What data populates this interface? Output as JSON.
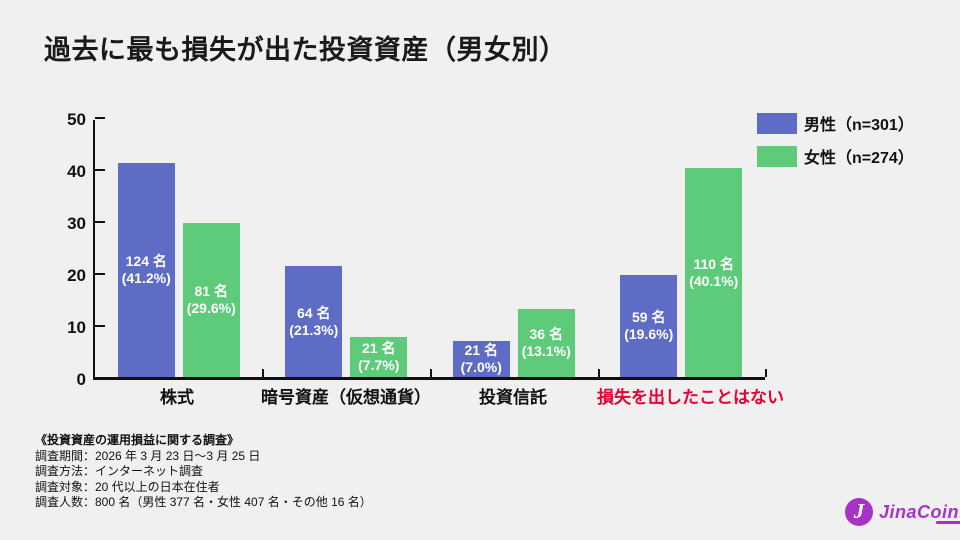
{
  "title": "過去に最も損失が出た投資資産（男女別）",
  "colors": {
    "male": "#5e6cc6",
    "female": "#5ecb7b",
    "highlight": "#e60033",
    "axis": "#111111",
    "background": "#f0f0f1",
    "bar_label_text": "#ffffff",
    "logo": "#a832c8"
  },
  "legend": {
    "items": [
      {
        "label": "男性（n=301）",
        "series": "male"
      },
      {
        "label": "女性（n=274）",
        "series": "female"
      }
    ]
  },
  "chart_data": {
    "type": "bar",
    "title": "過去に最も損失が出た投資資産（男女別）",
    "xlabel": "",
    "ylabel": "",
    "ylim": [
      0,
      50
    ],
    "yticks": [
      0,
      10,
      20,
      30,
      40,
      50
    ],
    "grid": false,
    "legend_position": "top-right",
    "categories": [
      "株式",
      "暗号資産（仮想通貨）",
      "投資信託",
      "損失を出したことはない"
    ],
    "category_highlight": [
      false,
      false,
      false,
      true
    ],
    "series": [
      {
        "name": "男性（n=301）",
        "color_key": "male",
        "n": 301,
        "values": [
          41.2,
          21.3,
          7.0,
          19.6
        ],
        "bar_labels": [
          [
            "124 名",
            "(41.2%)"
          ],
          [
            "64 名",
            "(21.3%)"
          ],
          [
            "21 名",
            "(7.0%)"
          ],
          [
            "59 名",
            "(19.6%)"
          ]
        ]
      },
      {
        "name": "女性（n=274）",
        "color_key": "female",
        "n": 274,
        "values": [
          29.6,
          7.7,
          13.1,
          40.1
        ],
        "bar_labels": [
          [
            "81 名",
            "(29.6%)"
          ],
          [
            "21 名",
            "(7.7%)"
          ],
          [
            "36 名",
            "(13.1%)"
          ],
          [
            "110 名",
            "(40.1%)"
          ]
        ]
      }
    ]
  },
  "survey_notes": {
    "heading": "《投資資産の運用損益に関する調査》",
    "lines": [
      "調査期間：2026 年 3 月 23 日～3 月 25 日",
      "調査方法：インターネット調査",
      "調査対象：20 代以上の日本在住者",
      "調査人数：800 名（男性 377 名・女性 407 名・その他 16 名）"
    ]
  },
  "logo": {
    "text": "JinaCoin",
    "icon": "jinacoin-j-circle"
  }
}
